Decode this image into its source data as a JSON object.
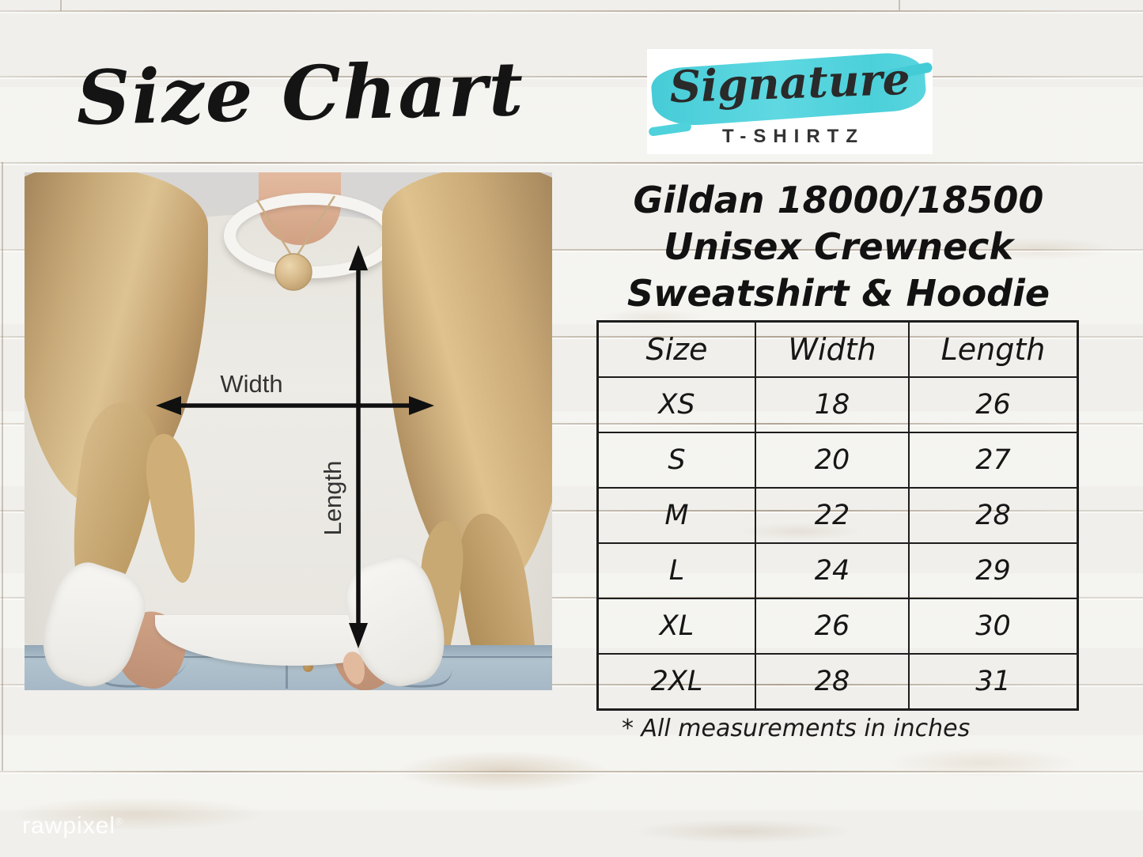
{
  "page_title": "Size Chart",
  "brand": {
    "name": "Signature",
    "subtitle": "T-SHIRTZ",
    "accent_color": "#4ed2dc"
  },
  "product_heading": {
    "lines": [
      "Gildan 18000/18500",
      "Unisex Crewneck",
      "Sweatshirt & Hoodie"
    ]
  },
  "diagram": {
    "width_label": "Width",
    "length_label": "Length"
  },
  "chart_data": {
    "type": "table",
    "title": "Gildan 18000/18500 Unisex Crewneck Sweatshirt & Hoodie",
    "columns": [
      "Size",
      "Width",
      "Length"
    ],
    "rows": [
      [
        "XS",
        "18",
        "26"
      ],
      [
        "S",
        "20",
        "27"
      ],
      [
        "M",
        "22",
        "28"
      ],
      [
        "L",
        "24",
        "29"
      ],
      [
        "XL",
        "26",
        "30"
      ],
      [
        "2XL",
        "28",
        "31"
      ]
    ],
    "units": "inches",
    "footnote": "* All measurements in inches"
  },
  "watermark": {
    "text": "rawpixel",
    "mark": "®"
  }
}
